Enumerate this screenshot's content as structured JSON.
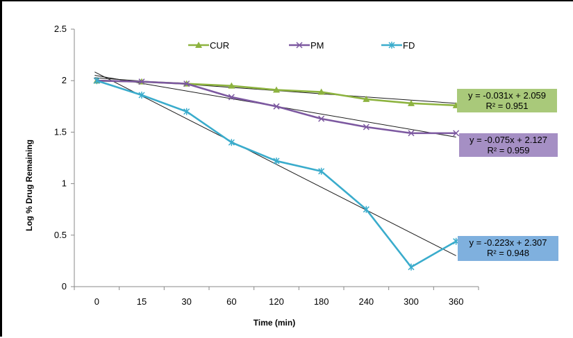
{
  "chart_data": {
    "type": "line",
    "title": "",
    "xlabel": "Time (min)",
    "ylabel": "Log % Drug Remaining",
    "categories": [
      "0",
      "15",
      "30",
      "60",
      "120",
      "180",
      "240",
      "300",
      "360"
    ],
    "ylim": [
      0,
      2.5
    ],
    "yticks": [
      "0",
      "0.5",
      "1",
      "1.5",
      "2",
      "2.5"
    ],
    "grid": false,
    "legend_position": "top",
    "series": [
      {
        "name": "CUR",
        "color": "#8db33f",
        "marker": "triangle-icon",
        "values": [
          2.0,
          1.99,
          1.97,
          1.95,
          1.91,
          1.89,
          1.82,
          1.78,
          1.76
        ]
      },
      {
        "name": "PM",
        "color": "#7c58a0",
        "marker": "x-mark-icon",
        "values": [
          2.0,
          1.99,
          1.97,
          1.84,
          1.75,
          1.63,
          1.55,
          1.49,
          1.49
        ]
      },
      {
        "name": "FD",
        "color": "#3aaccc",
        "marker": "star-mark-icon",
        "values": [
          2.0,
          1.86,
          1.7,
          1.4,
          1.22,
          1.12,
          0.75,
          0.19,
          0.44
        ]
      }
    ],
    "trendlines": [
      {
        "series": "CUR",
        "equation": "y = -0.031x + 2.059",
        "r2": "R² = 0.951",
        "slope": -0.031,
        "intercept": 2.059,
        "box_color": "#a9c97a"
      },
      {
        "series": "PM",
        "equation": "y = -0.075x + 2.127",
        "r2": "R² = 0.959",
        "slope": -0.075,
        "intercept": 2.127,
        "box_color": "#a58fc4"
      },
      {
        "series": "FD",
        "equation": "y = -0.223x + 2.307",
        "r2": "R² = 0.948",
        "slope": -0.223,
        "intercept": 2.307,
        "box_color": "#7fb0de"
      }
    ]
  }
}
